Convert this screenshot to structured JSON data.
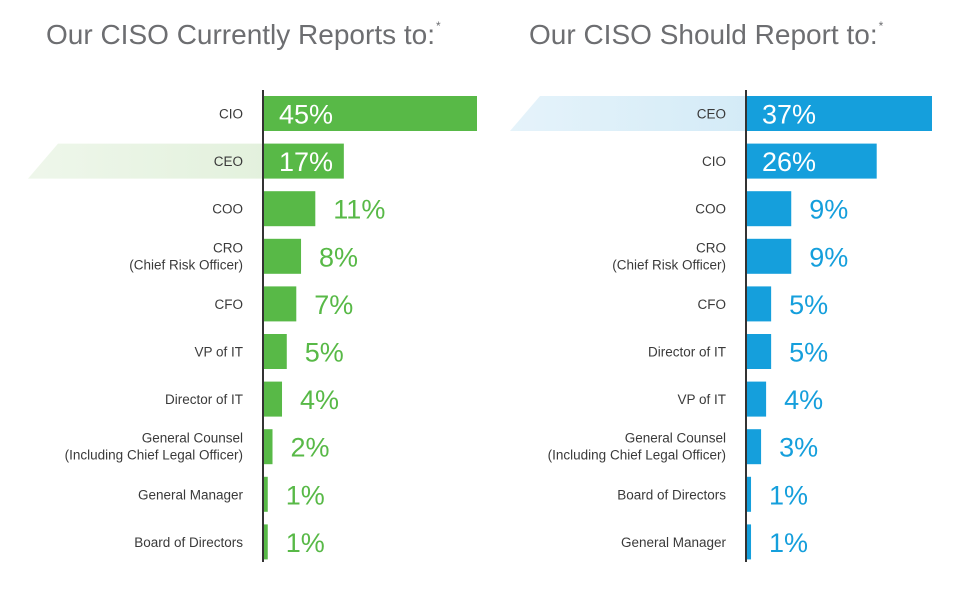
{
  "chart_data": [
    {
      "type": "bar",
      "orientation": "horizontal",
      "title": "Our CISO Currently Reports to:",
      "title_mark": "*",
      "color": "#58b947",
      "highlight_color": "#e3f1dd",
      "highlight_category": "CEO",
      "value_label_suffix": "%",
      "categories": [
        [
          "CIO"
        ],
        [
          "CEO"
        ],
        [
          "COO"
        ],
        [
          "CRO",
          "(Chief Risk Officer)"
        ],
        [
          "CFO"
        ],
        [
          "VP of IT"
        ],
        [
          "Director of IT"
        ],
        [
          "General Counsel",
          "(Including Chief Legal Officer)"
        ],
        [
          "General Manager"
        ],
        [
          "Board of Directors"
        ]
      ],
      "values": [
        45,
        17,
        11,
        8,
        7,
        5,
        4,
        2,
        1,
        1
      ]
    },
    {
      "type": "bar",
      "orientation": "horizontal",
      "title": "Our CISO Should Report to:",
      "title_mark": "*",
      "color": "#159fdc",
      "highlight_color": "#d4ebf7",
      "highlight_category": "CEO",
      "value_label_suffix": "%",
      "categories": [
        [
          "CEO"
        ],
        [
          "CIO"
        ],
        [
          "COO"
        ],
        [
          "CRO",
          "(Chief Risk Officer)"
        ],
        [
          "CFO"
        ],
        [
          "Director of IT"
        ],
        [
          "VP of IT"
        ],
        [
          "General Counsel",
          "(Including Chief Legal Officer)"
        ],
        [
          "Board of Directors"
        ],
        [
          "General Manager"
        ]
      ],
      "values": [
        37,
        26,
        9,
        9,
        5,
        5,
        4,
        3,
        1,
        1
      ]
    }
  ]
}
